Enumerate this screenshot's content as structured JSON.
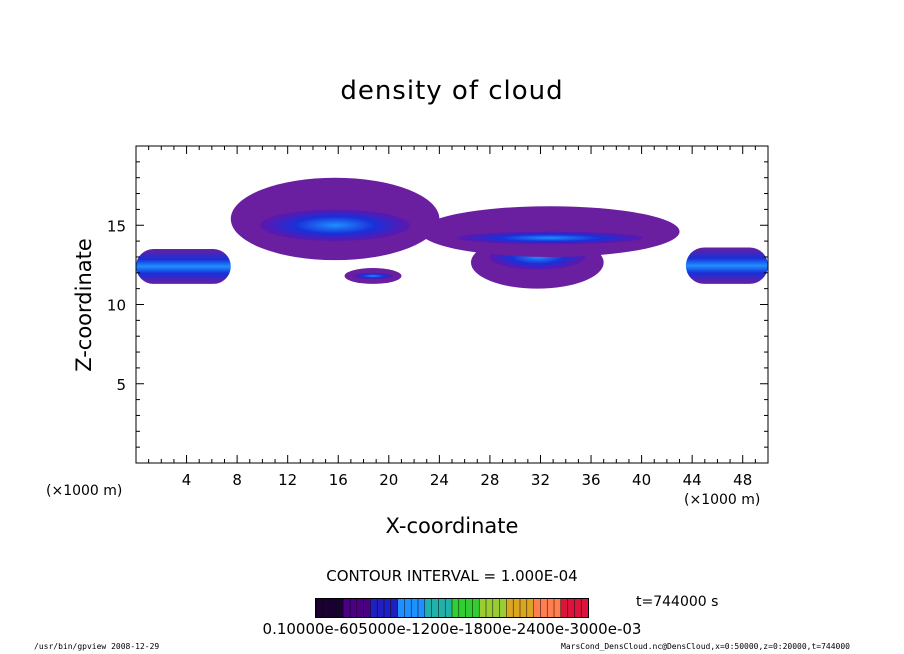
{
  "chart_data": {
    "type": "heatmap",
    "title": "density of cloud",
    "xlabel": "X-coordinate",
    "ylabel": "Z-coordinate",
    "x_unit": "(×1000 m)",
    "y_unit": "(×1000 m)",
    "xlim": [
      0,
      50
    ],
    "ylim": [
      0,
      20
    ],
    "x_ticks": [
      4,
      8,
      12,
      16,
      20,
      24,
      28,
      32,
      36,
      40,
      44,
      48
    ],
    "y_ticks": [
      5,
      10,
      15
    ],
    "contour_interval": "CONTOUR INTERVAL = 1.000E-04",
    "time_label": "t=744000 s",
    "colorbar_labels": "0.10000e-605000e-1200e-1800e-2400e-3000e-03",
    "colorbar_colors": [
      "#1a0033",
      "#4b0082",
      "#2020c0",
      "#1e90ff",
      "#20b2aa",
      "#32cd32",
      "#9acd32",
      "#daa520",
      "#ff7f50",
      "#dc143c"
    ],
    "regions": [
      {
        "name": "left band",
        "x": [
          0,
          7.5
        ],
        "z": [
          11.3,
          13.5
        ],
        "core": [
          11.8,
          13.0
        ]
      },
      {
        "name": "upper sheet",
        "x": [
          7.5,
          24
        ],
        "z": [
          12.8,
          18.0
        ],
        "core": [
          14.0,
          16.0
        ]
      },
      {
        "name": "small cell",
        "x": [
          16.5,
          21
        ],
        "z": [
          11.3,
          12.3
        ],
        "core": [
          11.6,
          12.0
        ]
      },
      {
        "name": "center dome",
        "x": [
          26.5,
          37
        ],
        "z": [
          11.0,
          14.3
        ],
        "core": [
          12.2,
          13.8
        ]
      },
      {
        "name": "upper scattered",
        "x": [
          22.5,
          43
        ],
        "z": [
          13.0,
          16.2
        ],
        "core": [
          13.8,
          14.6
        ]
      },
      {
        "name": "right band",
        "x": [
          43.5,
          50
        ],
        "z": [
          11.3,
          13.6
        ],
        "core": [
          11.8,
          13.0
        ]
      }
    ]
  },
  "footer": {
    "left": "/usr/bin/gpview   2008-12-29",
    "right": "MarsCond_DensCloud.nc@DensCloud,x=0:50000,z=0:20000,t=744000"
  }
}
